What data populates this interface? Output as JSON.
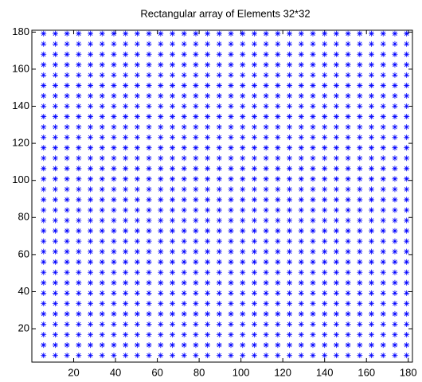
{
  "chart_data": {
    "type": "scatter",
    "title": "Rectangular array of Elements 32*32",
    "x": [
      5.6,
      11.2,
      16.8,
      22.4,
      28,
      33.6,
      39.2,
      44.8,
      50.4,
      56,
      61.6,
      67.2,
      72.8,
      78.4,
      84,
      89.6,
      95.2,
      100.8,
      106.4,
      112,
      117.6,
      123.2,
      128.8,
      134.4,
      140,
      145.6,
      151.2,
      156.8,
      162.4,
      168,
      173.6,
      179.2
    ],
    "y": [
      5.6,
      11.2,
      16.8,
      22.4,
      28,
      33.6,
      39.2,
      44.8,
      50.4,
      56,
      61.6,
      67.2,
      72.8,
      78.4,
      84,
      89.6,
      95.2,
      100.8,
      106.4,
      112,
      117.6,
      123.2,
      128.8,
      134.4,
      140,
      145.6,
      151.2,
      156.8,
      162.4,
      168,
      173.6,
      179.2
    ],
    "color": "#0000ff",
    "marker": "*",
    "xlim": [
      0,
      182
    ],
    "ylim": [
      2,
      181
    ],
    "xticks": [
      20,
      40,
      60,
      80,
      100,
      120,
      140,
      160,
      180
    ],
    "yticks": [
      20,
      40,
      60,
      80,
      100,
      120,
      140,
      160,
      180
    ],
    "grid": false
  }
}
